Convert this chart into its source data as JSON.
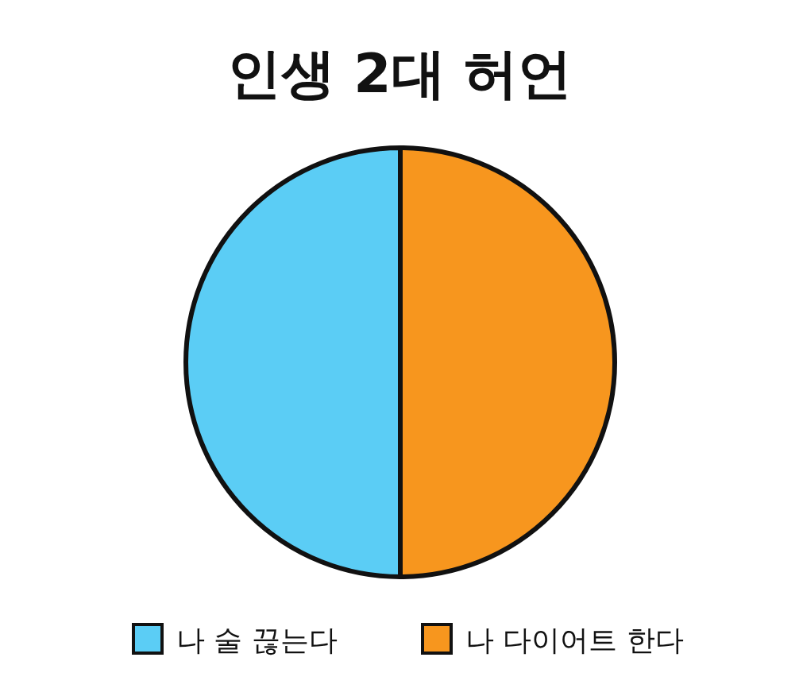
{
  "chart_data": {
    "type": "pie",
    "title": "인생 2대 허언",
    "categories": [
      "나 술 끊는다",
      "나 다이어트 한다"
    ],
    "values": [
      50,
      50
    ],
    "colors": [
      "#5bcdf5",
      "#f7961e"
    ],
    "legend": "bottom"
  }
}
